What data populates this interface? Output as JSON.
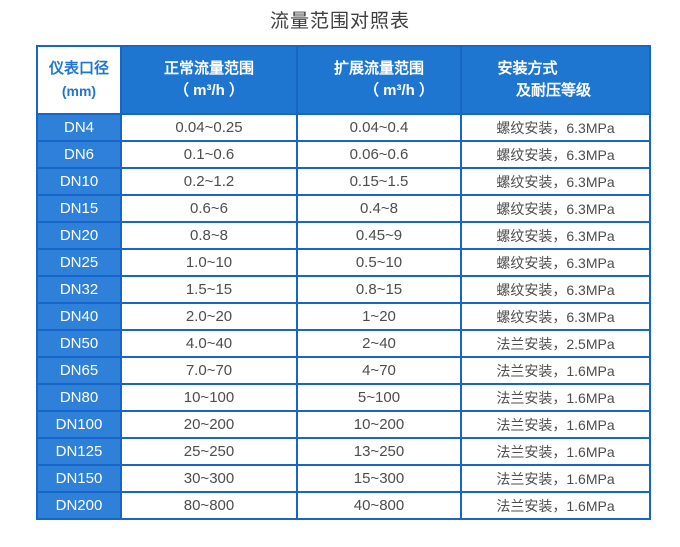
{
  "colors": {
    "header_bg": "#1e76d0",
    "dn_bg": "#2e80d8",
    "grid_border": "#1765c6",
    "header_text": "#ffffff",
    "corner_text": "#1f76d0",
    "body_text": "#4d4d4d",
    "title_text": "#3f3f3f"
  },
  "chart_data": {
    "type": "table",
    "title": "流量范围对照表",
    "headers": [
      {
        "line1": "仪表口径",
        "line2": "(mm)"
      },
      {
        "line1": "正常流量范围",
        "line2": "（ m³/h ）"
      },
      {
        "line1": "扩展流量范围",
        "line2": "（ m³/h ）"
      },
      {
        "line1": "安装方式",
        "line2": "及耐压等级"
      }
    ],
    "columns": [
      "仪表口径 (mm)",
      "正常流量范围（m³/h）",
      "扩展流量范围（m³/h）",
      "安装方式及耐压等级"
    ],
    "rows": [
      [
        "DN4",
        "0.04~0.25",
        "0.04~0.4",
        "螺纹安装，6.3MPa"
      ],
      [
        "DN6",
        "0.1~0.6",
        "0.06~0.6",
        "螺纹安装，6.3MPa"
      ],
      [
        "DN10",
        "0.2~1.2",
        "0.15~1.5",
        "螺纹安装，6.3MPa"
      ],
      [
        "DN15",
        "0.6~6",
        "0.4~8",
        "螺纹安装，6.3MPa"
      ],
      [
        "DN20",
        "0.8~8",
        "0.45~9",
        "螺纹安装，6.3MPa"
      ],
      [
        "DN25",
        "1.0~10",
        "0.5~10",
        "螺纹安装，6.3MPa"
      ],
      [
        "DN32",
        "1.5~15",
        "0.8~15",
        "螺纹安装，6.3MPa"
      ],
      [
        "DN40",
        "2.0~20",
        "1~20",
        "螺纹安装，6.3MPa"
      ],
      [
        "DN50",
        "4.0~40",
        "2~40",
        "法兰安装，2.5MPa"
      ],
      [
        "DN65",
        "7.0~70",
        "4~70",
        "法兰安装，1.6MPa"
      ],
      [
        "DN80",
        "10~100",
        "5~100",
        "法兰安装，1.6MPa"
      ],
      [
        "DN100",
        "20~200",
        "10~200",
        "法兰安装，1.6MPa"
      ],
      [
        "DN125",
        "25~250",
        "13~250",
        "法兰安装，1.6MPa"
      ],
      [
        "DN150",
        "30~300",
        "15~300",
        "法兰安装，1.6MPa"
      ],
      [
        "DN200",
        "80~800",
        "40~800",
        "法兰安装，1.6MPa"
      ]
    ]
  }
}
